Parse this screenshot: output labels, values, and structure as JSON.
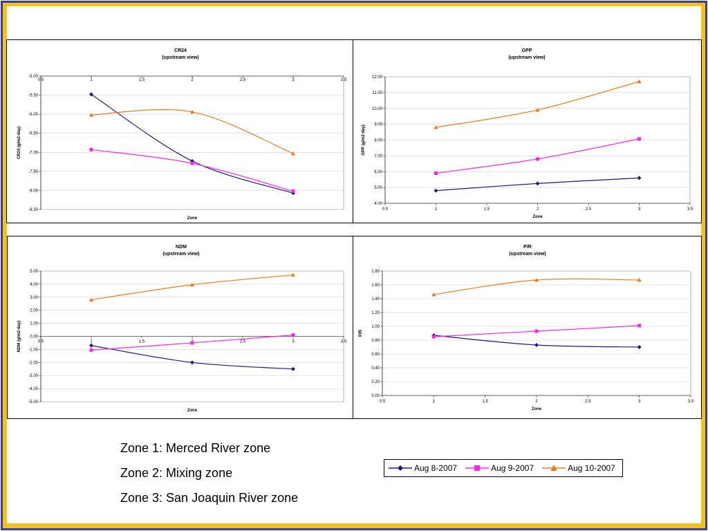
{
  "colors": {
    "s1": "#1a1a7a",
    "s2": "#ff22ee",
    "s3": "#f07818",
    "border": "#3b3b9a",
    "accent": "#f2c218"
  },
  "series_names": [
    "Aug 8-2007",
    "Aug 9-2007",
    "Aug 10-2007"
  ],
  "chart_data": [
    {
      "type": "line",
      "title": "CR24",
      "subtitle": "(upstream view)",
      "xlabel": "Zone",
      "ylabel": "CR24 (g/m2-day)",
      "xlim": [
        0.5,
        3.5
      ],
      "ylim": [
        -8.5,
        -5.0
      ],
      "xticks": [
        "0.5",
        "1",
        "1.5",
        "2",
        "2.5",
        "3",
        "3.5"
      ],
      "yticks": [
        "-5.00",
        "-5.50",
        "-6.00",
        "-6.50",
        "-7.00",
        "-7.50",
        "-8.00",
        "-8.50"
      ],
      "x_axis_at_top": true,
      "x": [
        1,
        2,
        3
      ],
      "series": [
        {
          "name": "Aug 8-2007",
          "values": [
            -5.48,
            -7.23,
            -8.07
          ]
        },
        {
          "name": "Aug 9-2007",
          "values": [
            -6.93,
            -7.29,
            -8.02
          ]
        },
        {
          "name": "Aug 10-2007",
          "values": [
            -6.02,
            -5.94,
            -7.03
          ]
        }
      ]
    },
    {
      "type": "line",
      "title": "GPP",
      "subtitle": "(upstream view)",
      "xlabel": "Zone",
      "ylabel": "GPP (g/m2-day)",
      "xlim": [
        0.5,
        3.5
      ],
      "ylim": [
        4.0,
        12.0
      ],
      "xticks": [
        "0.5",
        "1",
        "1.5",
        "2",
        "2.5",
        "3",
        "3.5"
      ],
      "yticks": [
        "12.00",
        "11.00",
        "10.00",
        "9.00",
        "8.00",
        "7.00",
        "6.00",
        "5.00",
        "4.00"
      ],
      "x_axis_at_top": false,
      "x": [
        1,
        2,
        3
      ],
      "series": [
        {
          "name": "Aug 8-2007",
          "values": [
            4.8,
            5.25,
            5.6
          ]
        },
        {
          "name": "Aug 9-2007",
          "values": [
            5.9,
            6.8,
            8.07
          ]
        },
        {
          "name": "Aug 10-2007",
          "values": [
            8.8,
            9.9,
            11.7
          ]
        }
      ]
    },
    {
      "type": "line",
      "title": "NDM",
      "subtitle": "(upstream view)",
      "xlabel": "Zone",
      "ylabel": "NDM (g/m2-day)",
      "xlim": [
        0.5,
        3.5
      ],
      "ylim": [
        -5.0,
        5.0
      ],
      "xticks": [
        "0.5",
        "1",
        "1.5",
        "2",
        "2.5",
        "3",
        "3.5"
      ],
      "yticks": [
        "5.00",
        "4.00",
        "3.00",
        "2.00",
        "1.00",
        "0.00",
        "-1.00",
        "-2.00",
        "-3.00",
        "-4.00",
        "-5.00"
      ],
      "x_axis_at_zero": true,
      "x": [
        1,
        2,
        3
      ],
      "series": [
        {
          "name": "Aug 8-2007",
          "values": [
            -0.7,
            -2.0,
            -2.5
          ]
        },
        {
          "name": "Aug 9-2007",
          "values": [
            -1.05,
            -0.5,
            0.1
          ]
        },
        {
          "name": "Aug 10-2007",
          "values": [
            2.8,
            3.95,
            4.7
          ]
        }
      ]
    },
    {
      "type": "line",
      "title": "P/R",
      "subtitle": "(upstream view)",
      "xlabel": "Zone",
      "ylabel": "P/R",
      "xlim": [
        0.5,
        3.5
      ],
      "ylim": [
        0.0,
        1.8
      ],
      "xticks": [
        "0.5",
        "1",
        "1.5",
        "2",
        "2.5",
        "3",
        "3.5"
      ],
      "yticks": [
        "1.80",
        "1.60",
        "1.40",
        "1.20",
        "1.00",
        "0.80",
        "0.60",
        "0.40",
        "0.20",
        "0.00"
      ],
      "x_axis_at_top": false,
      "x": [
        1,
        2,
        3
      ],
      "series": [
        {
          "name": "Aug 8-2007",
          "values": [
            0.87,
            0.73,
            0.7
          ]
        },
        {
          "name": "Aug 9-2007",
          "values": [
            0.85,
            0.93,
            1.01
          ]
        },
        {
          "name": "Aug 10-2007",
          "values": [
            1.46,
            1.67,
            1.67
          ]
        }
      ]
    }
  ],
  "zones": [
    "Zone 1: Merced River zone",
    "Zone 2: Mixing zone",
    "Zone 3: San Joaquin River zone"
  ]
}
